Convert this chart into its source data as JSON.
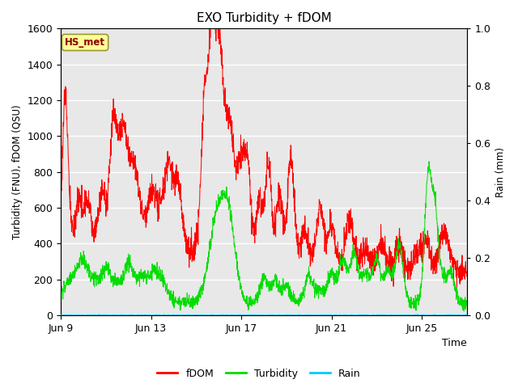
{
  "title": "EXO Turbidity + fDOM",
  "xlabel": "Time",
  "ylabel_left": "Turbidity (FNU), fDOM (QSU)",
  "ylabel_right": "Rain (mm)",
  "ylim_left": [
    0,
    1600
  ],
  "ylim_right": [
    0,
    1.0
  ],
  "yticks_left": [
    0,
    200,
    400,
    600,
    800,
    1000,
    1200,
    1400,
    1600
  ],
  "yticks_right": [
    0.0,
    0.2,
    0.4,
    0.6,
    0.8,
    1.0
  ],
  "xtick_labels": [
    "Jun 9",
    "Jun 13",
    "Jun 17",
    "Jun 21",
    "Jun 25"
  ],
  "xtick_positions": [
    0,
    4,
    8,
    12,
    16
  ],
  "xlim": [
    0,
    18
  ],
  "station_label": "HS_met",
  "fdom_color": "#ff0000",
  "turbidity_color": "#00dd00",
  "rain_color": "#00ccff",
  "bg_color": "#e8e8e8",
  "grid_color": "#ffffff",
  "n_points": 2000,
  "legend_labels": [
    "fDOM",
    "Turbidity",
    "Rain"
  ],
  "figsize": [
    6.4,
    4.8
  ],
  "dpi": 100
}
